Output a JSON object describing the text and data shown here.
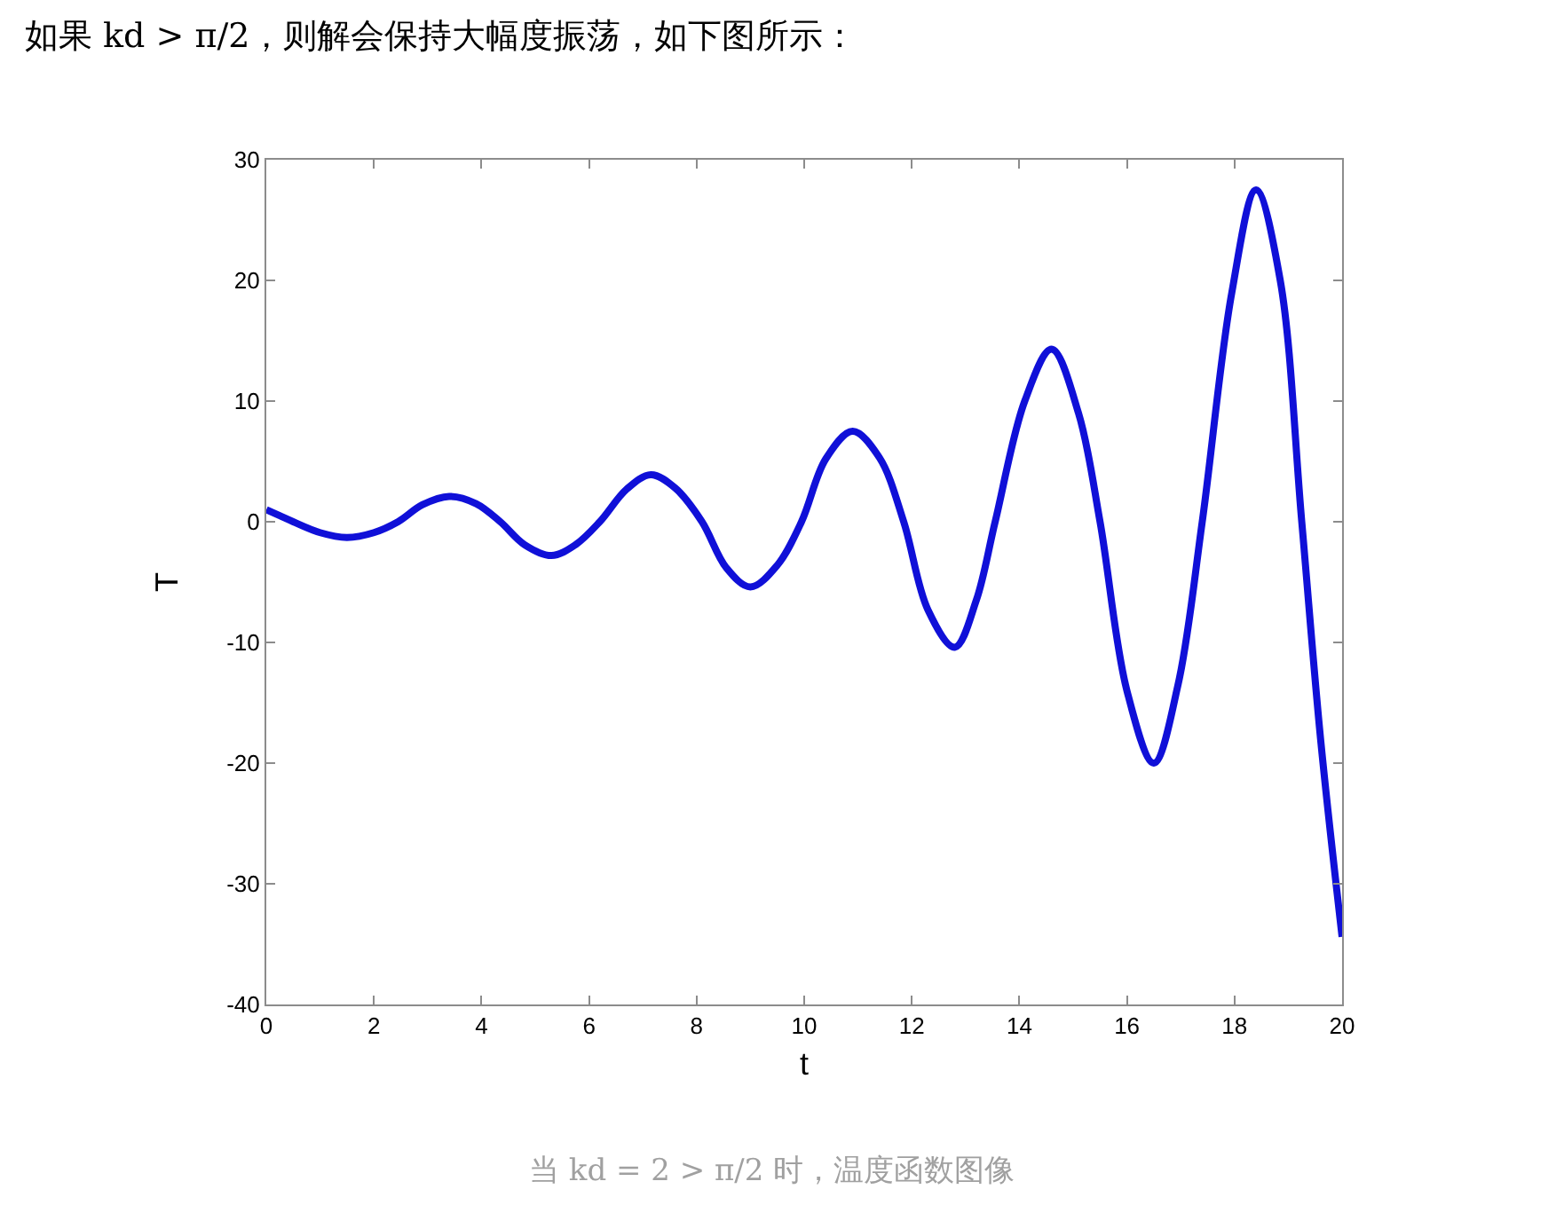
{
  "chart_data": {
    "type": "line",
    "title": "如果 kd > π/2，则解会保持大幅度振荡，如下图所示：",
    "xlabel": "t",
    "ylabel": "T",
    "annotations": [
      "当 kd = 2 > π/2 时，温度函数图像"
    ],
    "x": [
      0,
      0.25,
      0.5,
      1.0,
      1.5,
      2.0,
      2.45,
      2.9,
      3.4,
      3.9,
      4.35,
      4.8,
      5.3,
      5.75,
      6.2,
      6.7,
      7.15,
      7.6,
      8.1,
      8.55,
      9.0,
      9.5,
      9.95,
      10.4,
      10.9,
      11.4,
      11.85,
      12.3,
      12.8,
      13.2,
      13.55,
      14.1,
      14.6,
      15.1,
      15.5,
      16.0,
      16.5,
      16.95,
      17.4,
      17.95,
      18.4,
      18.85,
      19.25,
      19.6,
      20
    ],
    "series": [
      {
        "color": "#1010d8",
        "values": [
          1.0,
          0.5,
          0,
          -0.9,
          -1.3,
          -0.9,
          0,
          1.4,
          2.1,
          1.5,
          0,
          -1.9,
          -2.8,
          -1.9,
          0,
          2.7,
          3.9,
          2.8,
          0,
          -3.8,
          -5.4,
          -3.6,
          0,
          5.2,
          7.5,
          5.3,
          0,
          -7.3,
          -10.4,
          -6.5,
          0,
          10,
          14.3,
          9,
          0,
          -14,
          -20,
          -13.5,
          0,
          19,
          27.5,
          20,
          0,
          -18,
          -34.4
        ]
      }
    ],
    "xlim": [
      0,
      20
    ],
    "xticks": [
      0,
      2,
      4,
      6,
      8,
      10,
      12,
      14,
      16,
      18,
      20
    ],
    "ylim": [
      -40,
      30
    ],
    "yticks": [
      -40,
      -30,
      -20,
      -10,
      0,
      10,
      20,
      30
    ],
    "line_style": "solid"
  }
}
